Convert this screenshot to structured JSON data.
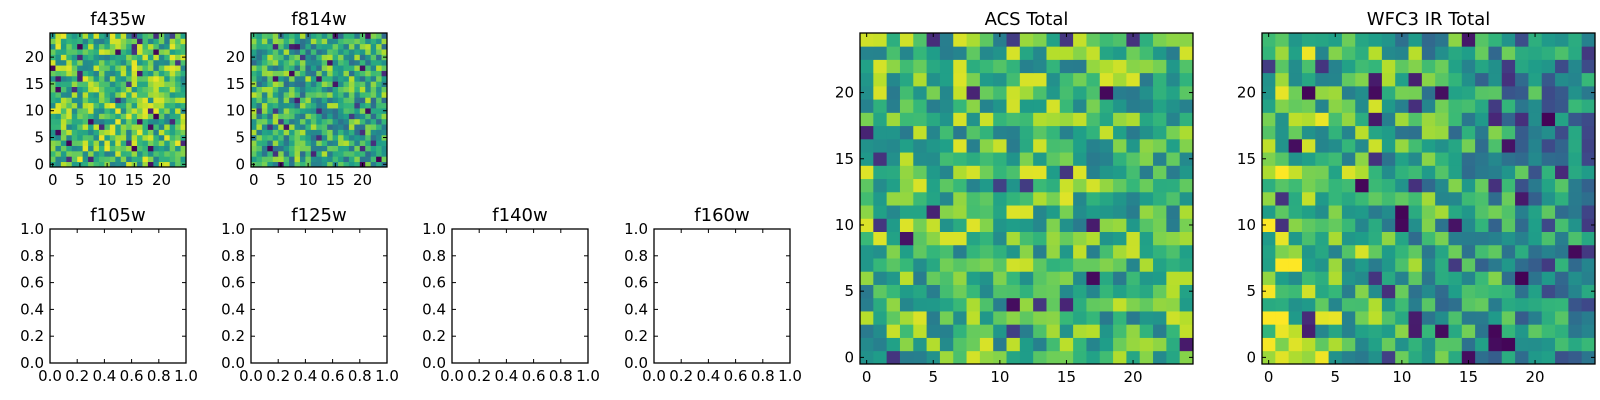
{
  "colors": {
    "background": "#ffffff",
    "axes_edge": "#000000",
    "colormap": "viridis"
  },
  "chart_data": [
    {
      "id": "f435w",
      "type": "heatmap",
      "title": "f435w",
      "xticks": [
        "0",
        "5",
        "10",
        "15",
        "20"
      ],
      "yticks": [
        "0",
        "5",
        "10",
        "15",
        "20"
      ],
      "xlim": [
        -0.5,
        24.5
      ],
      "ylim": [
        -0.5,
        24.5
      ],
      "grid_size": 25,
      "seed": 11,
      "dark_fraction": 0.06,
      "bright_bias": 0.7
    },
    {
      "id": "f814w",
      "type": "heatmap",
      "title": "f814w",
      "xticks": [
        "0",
        "5",
        "10",
        "15",
        "20"
      ],
      "yticks": [
        "0",
        "5",
        "10",
        "15",
        "20"
      ],
      "xlim": [
        -0.5,
        24.5
      ],
      "ylim": [
        -0.5,
        24.5
      ],
      "grid_size": 25,
      "seed": 27,
      "dark_fraction": 0.06,
      "bright_bias": 0.62
    },
    {
      "id": "f105w",
      "type": "empty",
      "title": "f105w",
      "xticks": [
        "0.0",
        "0.2",
        "0.4",
        "0.6",
        "0.8",
        "1.0"
      ],
      "yticks": [
        "0.0",
        "0.2",
        "0.4",
        "0.6",
        "0.8",
        "1.0"
      ],
      "xlim": [
        0,
        1
      ],
      "ylim": [
        0,
        1
      ]
    },
    {
      "id": "f125w",
      "type": "empty",
      "title": "f125w",
      "xticks": [
        "0.0",
        "0.2",
        "0.4",
        "0.6",
        "0.8",
        "1.0"
      ],
      "yticks": [
        "0.0",
        "0.2",
        "0.4",
        "0.6",
        "0.8",
        "1.0"
      ],
      "xlim": [
        0,
        1
      ],
      "ylim": [
        0,
        1
      ]
    },
    {
      "id": "f140w",
      "type": "empty",
      "title": "f140w",
      "xticks": [
        "0.0",
        "0.2",
        "0.4",
        "0.6",
        "0.8",
        "1.0"
      ],
      "yticks": [
        "0.0",
        "0.2",
        "0.4",
        "0.6",
        "0.8",
        "1.0"
      ],
      "xlim": [
        0,
        1
      ],
      "ylim": [
        0,
        1
      ]
    },
    {
      "id": "f160w",
      "type": "empty",
      "title": "f160w",
      "xticks": [
        "0.0",
        "0.2",
        "0.4",
        "0.6",
        "0.8",
        "1.0"
      ],
      "yticks": [
        "0.0",
        "0.2",
        "0.4",
        "0.6",
        "0.8",
        "1.0"
      ],
      "xlim": [
        0,
        1
      ],
      "ylim": [
        0,
        1
      ]
    },
    {
      "id": "acs-total",
      "type": "heatmap",
      "title": "ACS Total",
      "xticks": [
        "0",
        "5",
        "10",
        "15",
        "20"
      ],
      "yticks": [
        "0",
        "5",
        "10",
        "15",
        "20"
      ],
      "xlim": [
        -0.5,
        24.5
      ],
      "ylim": [
        -0.5,
        24.5
      ],
      "grid_size": 25,
      "seed": 43,
      "dark_fraction": 0.05,
      "bright_bias": 0.68
    },
    {
      "id": "wfc3-ir-total",
      "type": "heatmap",
      "title": "WFC3 IR Total",
      "xticks": [
        "0",
        "5",
        "10",
        "15",
        "20"
      ],
      "yticks": [
        "0",
        "5",
        "10",
        "15",
        "20"
      ],
      "xlim": [
        -0.5,
        24.5
      ],
      "ylim": [
        -0.5,
        24.5
      ],
      "grid_size": 25,
      "seed": 59,
      "dark_fraction": 0.06,
      "bright_bias": 0.6,
      "left_bright": true
    }
  ]
}
